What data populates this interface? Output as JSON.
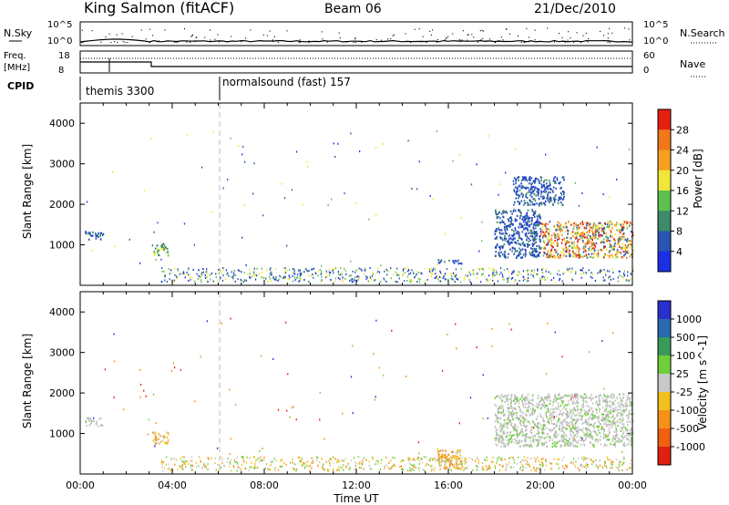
{
  "header": {
    "station": "King Salmon (fitACF)",
    "beam": "Beam 06",
    "date": "21/Dec/2010"
  },
  "top_panel": {
    "nsky_label": "N.Sky",
    "nsearch_label": "N.Search",
    "left_ticks": [
      "10^5",
      "10^0"
    ],
    "right_ticks": [
      "10^5",
      "10^0"
    ]
  },
  "freq_panel": {
    "freq_label": "Freq.",
    "freq_unit": "[MHz]",
    "nave_label": "Nave",
    "left_ticks": [
      "18",
      "8"
    ],
    "right_ticks": [
      "60",
      "0"
    ]
  },
  "cpid": {
    "label": "CPID",
    "modes": [
      {
        "name": "themis 3300",
        "start_hour": 0,
        "end_hour": 6
      },
      {
        "name": "normalsound (fast) 157",
        "start_hour": 6,
        "end_hour": 24
      }
    ]
  },
  "chart_data": [
    {
      "type": "heatmap",
      "name": "power",
      "ylabel": "Slant Range [km]",
      "xlabel": "",
      "ylim": [
        0,
        4500
      ],
      "yticks": [
        "1000",
        "2000",
        "3000",
        "4000"
      ],
      "colorbar": {
        "label": "Power [dB]",
        "ticks": [
          "4",
          "8",
          "12",
          "16",
          "20",
          "24",
          "28"
        ],
        "colors": [
          "#1a2fe6",
          "#2a55b0",
          "#3e8a6a",
          "#5fbf50",
          "#f2e63a",
          "#f5a020",
          "#f07818",
          "#e52010"
        ]
      },
      "regions": [
        {
          "t0": 0.2,
          "t1": 1.0,
          "r0": 1150,
          "r1": 1350,
          "level": "low"
        },
        {
          "t0": 3.1,
          "t1": 3.8,
          "r0": 750,
          "r1": 1050,
          "level": "mid"
        },
        {
          "t0": 15.5,
          "t1": 16.6,
          "r0": 550,
          "r1": 650,
          "level": "low"
        },
        {
          "t0": 18.0,
          "t1": 20.0,
          "r0": 700,
          "r1": 1900,
          "level": "low"
        },
        {
          "t0": 20.0,
          "t1": 24.0,
          "r0": 700,
          "r1": 1600,
          "level": "high"
        },
        {
          "t0": 18.8,
          "t1": 21.0,
          "r0": 2000,
          "r1": 2700,
          "level": "low"
        }
      ]
    },
    {
      "type": "heatmap",
      "name": "velocity",
      "ylabel": "Slant Range [km]",
      "xlabel": "Time UT",
      "ylim": [
        0,
        4500
      ],
      "yticks": [
        "1000",
        "2000",
        "3000",
        "4000"
      ],
      "xticks": [
        "00:00",
        "04:00",
        "08:00",
        "12:00",
        "16:00",
        "20:00",
        "00:00"
      ],
      "colorbar": {
        "label": "Velocity [m s^-1]",
        "ticks": [
          "1000",
          "500",
          "100",
          "25",
          "-25",
          "-100",
          "-500",
          "-1000"
        ],
        "colors": [
          "#2a2fd0",
          "#2a6ab0",
          "#3a9a5a",
          "#6fcf3a",
          "#c8c8c8",
          "#f2c020",
          "#f59018",
          "#f06010",
          "#e02010"
        ]
      },
      "regions": [
        {
          "t0": 0.2,
          "t1": 1.0,
          "r0": 1200,
          "r1": 1400,
          "level": "grey"
        },
        {
          "t0": 3.1,
          "t1": 3.8,
          "r0": 750,
          "r1": 1050,
          "level": "orange"
        },
        {
          "t0": 15.5,
          "t1": 16.6,
          "r0": 150,
          "r1": 650,
          "level": "orange"
        },
        {
          "t0": 18.0,
          "t1": 24.0,
          "r0": 700,
          "r1": 2000,
          "level": "grey"
        }
      ]
    }
  ]
}
